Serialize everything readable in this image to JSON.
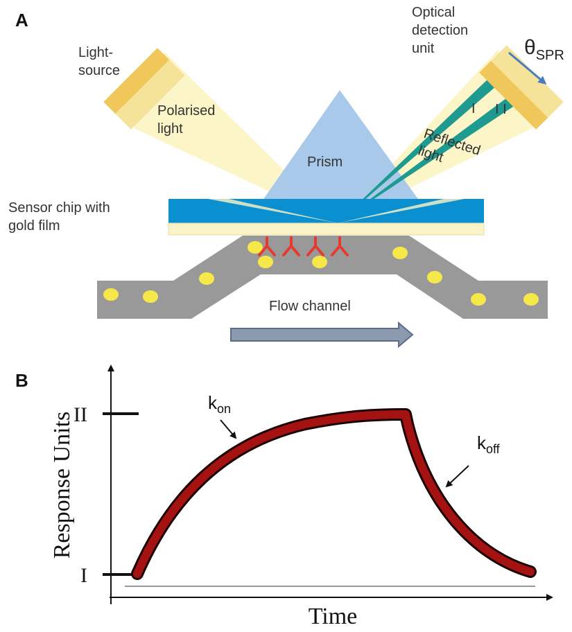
{
  "panel_a": {
    "label": "A",
    "detector": [
      "Optical",
      "detection",
      "unit"
    ],
    "angle": {
      "symbol": "θ",
      "subscript": "SPR"
    },
    "light_source": [
      "Light-",
      "source"
    ],
    "polarised_light": [
      "Polarised",
      "light"
    ],
    "prism": "Prism",
    "reflected_light": [
      "Reflected",
      "light"
    ],
    "beam_1": "I",
    "beam_2": "I I",
    "sensor_chip": [
      "Sensor chip with",
      "gold film"
    ],
    "flow_channel": "Flow channel"
  },
  "panel_b": {
    "label": "B",
    "y_axis_title": "Response Units",
    "x_axis_title": "Time",
    "level_high": "II",
    "level_low": "I",
    "k_on": {
      "symbol": "k",
      "subscript": "on"
    },
    "k_off": {
      "symbol": "k",
      "subscript": "off"
    }
  }
}
